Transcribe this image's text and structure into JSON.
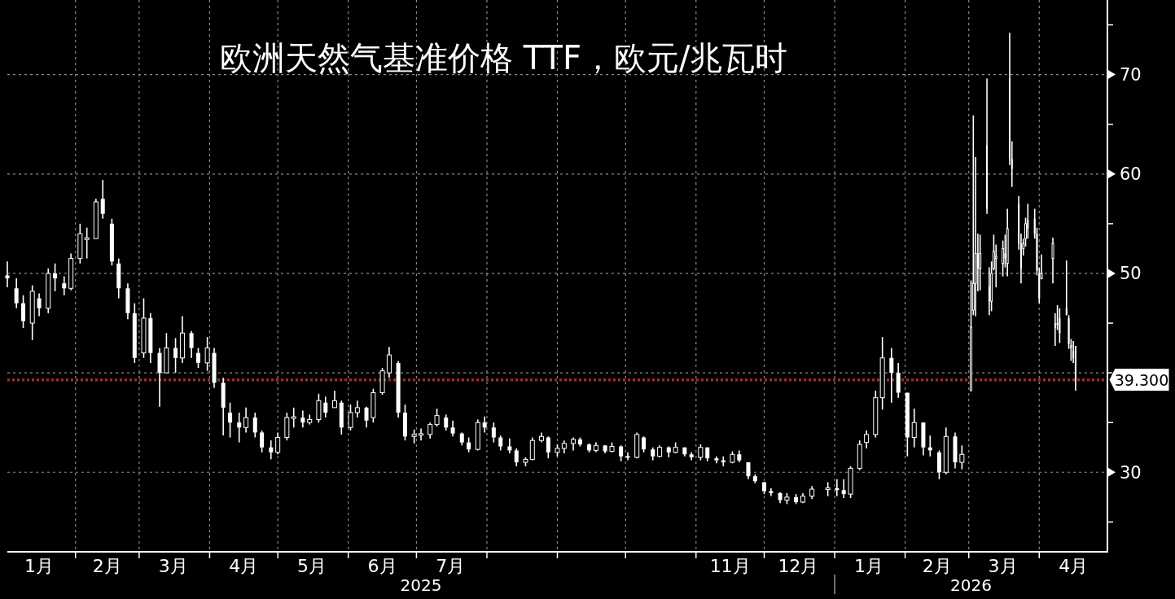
{
  "chart_data": {
    "type": "candlestick",
    "title": "欧洲天然气基准价格 TTF，欧元/兆瓦时",
    "color": "#ffffff",
    "x": [
      "2025-01-02",
      "2025-01-06",
      "2025-01-09",
      "2025-01-13",
      "2025-01-16",
      "2025-01-20",
      "2025-01-23",
      "2025-01-27",
      "2025-01-30",
      "2025-02-03",
      "2025-02-06",
      "2025-02-10",
      "2025-02-13",
      "2025-02-17",
      "2025-02-20",
      "2025-02-24",
      "2025-02-27",
      "2025-03-03",
      "2025-03-06",
      "2025-03-10",
      "2025-03-13",
      "2025-03-17",
      "2025-03-20",
      "2025-03-24",
      "2025-03-27",
      "2025-03-31",
      "2025-04-03",
      "2025-04-07",
      "2025-04-10",
      "2025-04-14",
      "2025-04-17",
      "2025-04-21",
      "2025-04-24",
      "2025-04-28",
      "2025-05-01",
      "2025-05-05",
      "2025-05-08",
      "2025-05-12",
      "2025-05-15",
      "2025-05-19",
      "2025-05-22",
      "2025-05-26",
      "2025-05-29",
      "2025-06-02",
      "2025-06-05",
      "2025-06-09",
      "2025-06-12",
      "2025-06-16",
      "2025-06-19",
      "2025-06-23",
      "2025-06-26",
      "2025-06-30",
      "2025-07-03",
      "2025-07-07",
      "2025-07-10",
      "2025-07-14",
      "2025-07-17",
      "2025-07-21",
      "2025-07-24",
      "2025-07-28",
      "2025-07-31",
      "2025-08-04",
      "2025-08-07",
      "2025-08-11",
      "2025-08-14",
      "2025-08-18",
      "2025-08-21",
      "2025-08-25",
      "2025-08-28",
      "2025-09-01",
      "2025-09-04",
      "2025-09-08",
      "2025-09-11",
      "2025-09-15",
      "2025-09-18",
      "2025-09-22",
      "2025-09-25",
      "2025-09-29",
      "2025-10-02",
      "2025-10-06",
      "2025-10-09",
      "2025-10-13",
      "2025-10-16",
      "2025-10-20",
      "2025-10-23",
      "2025-10-27",
      "2025-10-30",
      "2025-11-03",
      "2025-11-06",
      "2025-11-10",
      "2025-11-13",
      "2025-11-17",
      "2025-11-20",
      "2025-11-24",
      "2025-11-27",
      "2025-12-01",
      "2025-12-04",
      "2025-12-08",
      "2025-12-11",
      "2025-12-15",
      "2025-12-18",
      "2025-12-22",
      "2025-12-29",
      "2026-01-02",
      "2026-01-05",
      "2026-01-08",
      "2026-01-12",
      "2026-01-15",
      "2026-01-19",
      "2026-01-22",
      "2026-01-26",
      "2026-01-29",
      "2026-02-02",
      "2026-02-05",
      "2026-02-09",
      "2026-02-12",
      "2026-02-16",
      "2026-02-19",
      "2026-02-23",
      "2026-02-26",
      "2026-03-02",
      "2026-03-03",
      "2026-03-04",
      "2026-03-05",
      "2026-03-06",
      "2026-03-09",
      "2026-03-10",
      "2026-03-11",
      "2026-03-12",
      "2026-03-13",
      "2026-03-16",
      "2026-03-17",
      "2026-03-18",
      "2026-03-19",
      "2026-03-20",
      "2026-03-23",
      "2026-03-24",
      "2026-03-25",
      "2026-03-26",
      "2026-03-27",
      "2026-03-30",
      "2026-03-31",
      "2026-04-01",
      "2026-04-02",
      "2026-04-07",
      "2026-04-08",
      "2026-04-09",
      "2026-04-10",
      "2026-04-13",
      "2026-04-14",
      "2026-04-15",
      "2026-04-16",
      "2026-04-17"
    ],
    "ohlc": [
      [
        49.8,
        51.2,
        48.6,
        49.5
      ],
      [
        48.5,
        49.5,
        46.5,
        47
      ],
      [
        47,
        47.8,
        44.5,
        45.2
      ],
      [
        45,
        48.8,
        43.3,
        48.2
      ],
      [
        47.5,
        48,
        45.7,
        46.5
      ],
      [
        46.5,
        50.5,
        46,
        50
      ],
      [
        50,
        51,
        48.2,
        49.5
      ],
      [
        49,
        49.7,
        47.8,
        48.5
      ],
      [
        48.5,
        52,
        48.3,
        51.5
      ],
      [
        51.5,
        55,
        51,
        54
      ],
      [
        53.5,
        54.6,
        51.5,
        53.5
      ],
      [
        53.5,
        57.5,
        53.5,
        57.2
      ],
      [
        57.5,
        59.4,
        55.5,
        56
      ],
      [
        55,
        55.5,
        50.8,
        51.2
      ],
      [
        51,
        51.5,
        47.5,
        48.5
      ],
      [
        48.5,
        49,
        45.4,
        46
      ],
      [
        46,
        47,
        41,
        41.5
      ],
      [
        42,
        47.5,
        41.5,
        45.5
      ],
      [
        45.5,
        46,
        41,
        42
      ],
      [
        42,
        42.5,
        36.6,
        40
      ],
      [
        40,
        44,
        40,
        42.5
      ],
      [
        42.5,
        43.5,
        40,
        41.5
      ],
      [
        41.5,
        45.7,
        41,
        44
      ],
      [
        44,
        44.2,
        41.5,
        42.5
      ],
      [
        42,
        42.5,
        40.5,
        41
      ],
      [
        41,
        43.6,
        40.2,
        42.5
      ],
      [
        42,
        42.5,
        38.5,
        39
      ],
      [
        39,
        39.5,
        33.7,
        36.5
      ],
      [
        36,
        37,
        33.5,
        35
      ],
      [
        35,
        36,
        33,
        34.5
      ],
      [
        34.5,
        36.5,
        34,
        35.5
      ],
      [
        35.5,
        36,
        33.5,
        34
      ],
      [
        34,
        34.2,
        32,
        32.5
      ],
      [
        32.5,
        33.2,
        31.3,
        32
      ],
      [
        32,
        34,
        31.8,
        33.5
      ],
      [
        33.5,
        36,
        33.2,
        35.5
      ],
      [
        35.5,
        36.5,
        34.5,
        35.5
      ],
      [
        35.5,
        36.2,
        34.5,
        35
      ],
      [
        35,
        35.8,
        34.8,
        35.3
      ],
      [
        35.3,
        37.9,
        35,
        37.2
      ],
      [
        37,
        37.6,
        35.5,
        36
      ],
      [
        36.5,
        38.2,
        36.5,
        37.2
      ],
      [
        37,
        37.2,
        33.8,
        34.5
      ],
      [
        34.5,
        36.8,
        34.2,
        36
      ],
      [
        36,
        37.2,
        35.5,
        36.5
      ],
      [
        36.5,
        36.6,
        34.5,
        35.2
      ],
      [
        35.5,
        38.4,
        35,
        38
      ],
      [
        38,
        40.5,
        37.8,
        40.2
      ],
      [
        40,
        42.6,
        39.5,
        41.8
      ],
      [
        41,
        41.2,
        35.5,
        36
      ],
      [
        36,
        36.8,
        33.2,
        33.6
      ],
      [
        33.6,
        34.3,
        32.9,
        33.8
      ],
      [
        33.8,
        34.4,
        33.2,
        33.8
      ],
      [
        33.8,
        35,
        33.4,
        34.8
      ],
      [
        34.8,
        36.4,
        34.6,
        35.7
      ],
      [
        35.5,
        35.8,
        34.2,
        34.5
      ],
      [
        34.5,
        35.2,
        33.6,
        33.9
      ],
      [
        33.9,
        34,
        32.7,
        33
      ],
      [
        33,
        33.5,
        32,
        32.3
      ],
      [
        32.3,
        35.3,
        32.2,
        35
      ],
      [
        35,
        35.6,
        34,
        34.5
      ],
      [
        34.5,
        35,
        33,
        33.5
      ],
      [
        33.5,
        33.7,
        32.2,
        32.6
      ],
      [
        32.6,
        33.4,
        31.9,
        32.2
      ],
      [
        32.2,
        32.4,
        30.6,
        31
      ],
      [
        31,
        31.5,
        30.6,
        31.3
      ],
      [
        31.3,
        33.5,
        31.2,
        33.2
      ],
      [
        33.2,
        34,
        33,
        33.6
      ],
      [
        33.5,
        33.6,
        31.4,
        32
      ],
      [
        32,
        32.8,
        31.6,
        32.4
      ],
      [
        32.4,
        33.2,
        31.9,
        32.9
      ],
      [
        32.9,
        33.5,
        32.2,
        33.3
      ],
      [
        33.3,
        33.5,
        32.6,
        32.8
      ],
      [
        32.8,
        32.9,
        32,
        32.2
      ],
      [
        32.2,
        33,
        32,
        32.7
      ],
      [
        32.7,
        32.7,
        31.9,
        32.1
      ],
      [
        32.1,
        33,
        32,
        32.6
      ],
      [
        32.6,
        32.7,
        31.1,
        31.6
      ],
      [
        31.6,
        32,
        31.2,
        31.5
      ],
      [
        31.5,
        34,
        31.4,
        33.8
      ],
      [
        33.5,
        33.6,
        32,
        32.3
      ],
      [
        32.3,
        32.5,
        31.2,
        31.6
      ],
      [
        31.6,
        32.7,
        31.5,
        32.5
      ],
      [
        32.5,
        32.6,
        31.5,
        32
      ],
      [
        32,
        33,
        31.9,
        32.5
      ],
      [
        32.5,
        32.5,
        31.6,
        31.8
      ],
      [
        31.8,
        32,
        31.2,
        31.5
      ],
      [
        31.5,
        32.8,
        31.2,
        32.5
      ],
      [
        32.5,
        32.5,
        31.1,
        31.4
      ],
      [
        31.4,
        31.6,
        30.9,
        31.2
      ],
      [
        31.2,
        31.6,
        30.6,
        31
      ],
      [
        31,
        32.1,
        30.9,
        31.8
      ],
      [
        31.8,
        32.2,
        31,
        31.2
      ],
      [
        31,
        31,
        29.3,
        29.6
      ],
      [
        29.6,
        29.8,
        28.9,
        29.1
      ],
      [
        29,
        29,
        27.8,
        28.1
      ],
      [
        28.1,
        28.4,
        27.6,
        27.9
      ],
      [
        27.9,
        28,
        26.9,
        27.2
      ],
      [
        27.2,
        27.9,
        26.8,
        27.5
      ],
      [
        27.5,
        27.8,
        26.8,
        27
      ],
      [
        27,
        27.9,
        26.9,
        27.6
      ],
      [
        27.6,
        28.6,
        27.3,
        28.3
      ],
      [
        28.3,
        29,
        27.6,
        28.4
      ],
      [
        28.4,
        29.3,
        27.6,
        28.2
      ],
      [
        28.2,
        29.3,
        27.4,
        27.8
      ],
      [
        27.8,
        30.6,
        27.4,
        30.4
      ],
      [
        30.4,
        33.2,
        30.2,
        32.8
      ],
      [
        33,
        34.2,
        32.4,
        33.8
      ],
      [
        33.8,
        38.2,
        33.5,
        37.5
      ],
      [
        37.5,
        43.6,
        36.3,
        41.5
      ],
      [
        41.5,
        42.5,
        37,
        40
      ],
      [
        40,
        41,
        37.5,
        38
      ],
      [
        38,
        38,
        31.6,
        33.5
      ],
      [
        33.5,
        36.4,
        32.5,
        35
      ],
      [
        35,
        35,
        31.7,
        32.5
      ],
      [
        32.5,
        33.7,
        31.6,
        32.2
      ],
      [
        32,
        32.2,
        29.3,
        30
      ],
      [
        30,
        34.5,
        29.8,
        33.6
      ],
      [
        33.6,
        34,
        30.4,
        31
      ],
      [
        31,
        32.7,
        30.3,
        31.8
      ],
      [
        38.2,
        49.3,
        38.2,
        44.6
      ],
      [
        46.3,
        65.9,
        45.8,
        49
      ],
      [
        49,
        61.7,
        45.7,
        52
      ],
      [
        52,
        54,
        48.2,
        50.5
      ],
      [
        50.5,
        53.9,
        48.3,
        52
      ],
      [
        62.9,
        69.6,
        56,
        56.5
      ],
      [
        48.7,
        50.6,
        45.8,
        47.2
      ],
      [
        47.2,
        51.2,
        46.2,
        50
      ],
      [
        50.5,
        53.9,
        50.3,
        52.2
      ],
      [
        51.5,
        52.9,
        48.6,
        51.7
      ],
      [
        51,
        53.3,
        49.7,
        52.5
      ],
      [
        52,
        53.9,
        50.6,
        51.5
      ],
      [
        51,
        56.5,
        49.7,
        54.5
      ],
      [
        69.6,
        74.2,
        60.9,
        61.5
      ],
      [
        61.5,
        63.3,
        58.7,
        60.5
      ],
      [
        57,
        57.8,
        52.4,
        53
      ],
      [
        53,
        54,
        49,
        50.5
      ],
      [
        52.5,
        53.5,
        51.8,
        53
      ],
      [
        53.5,
        55.6,
        52.7,
        55
      ],
      [
        55.4,
        57,
        53.5,
        54.5
      ],
      [
        55.5,
        56.5,
        53.5,
        54
      ],
      [
        54,
        54.6,
        49.8,
        50.3
      ],
      [
        50,
        50.6,
        47,
        47.5
      ],
      [
        49.5,
        51.9,
        49.4,
        50
      ],
      [
        51.5,
        53.6,
        49,
        53
      ],
      [
        45,
        46,
        42.7,
        44.5
      ],
      [
        45,
        46.8,
        44.3,
        44.8
      ],
      [
        45.5,
        46.5,
        43,
        44
      ],
      [
        46.5,
        51.3,
        45.8,
        45.8
      ],
      [
        45.5,
        45.8,
        42.4,
        42.9
      ],
      [
        42.8,
        43.4,
        41.2,
        42.5
      ],
      [
        42.2,
        43.2,
        41,
        41.5
      ],
      [
        42.7,
        42.7,
        38.2,
        39.3
      ]
    ],
    "xlim": [
      "2025-01-02",
      "2026-05-01"
    ],
    "xticks": [
      {
        "value": "2025-01-16",
        "label": "1月"
      },
      {
        "value": "2025-02-01",
        "label": null
      },
      {
        "value": "2025-02-15",
        "label": "2月"
      },
      {
        "value": "2025-03-01",
        "label": null
      },
      {
        "value": "2025-03-16",
        "label": "3月"
      },
      {
        "value": "2025-04-01",
        "label": null
      },
      {
        "value": "2025-04-16",
        "label": "4月"
      },
      {
        "value": "2025-05-01",
        "label": null
      },
      {
        "value": "2025-05-16",
        "label": "5月"
      },
      {
        "value": "2025-06-01",
        "label": null
      },
      {
        "value": "2025-06-16",
        "label": "6月"
      },
      {
        "value": "2025-07-01",
        "label": null
      },
      {
        "value": "2025-07-16",
        "label": "7月"
      },
      {
        "value": "2025-08-01",
        "label": null
      },
      {
        "value": "2025-09-01",
        "label": null
      },
      {
        "value": "2025-10-01",
        "label": null
      },
      {
        "value": "2025-11-01",
        "label": null
      },
      {
        "value": "2025-11-16",
        "label": "11月"
      },
      {
        "value": "2025-12-01",
        "label": null
      },
      {
        "value": "2025-12-16",
        "label": "12月"
      },
      {
        "value": "2026-01-01",
        "label": null
      },
      {
        "value": "2026-01-16",
        "label": "1月"
      },
      {
        "value": "2026-02-01",
        "label": null
      },
      {
        "value": "2026-02-15",
        "label": "2月"
      },
      {
        "value": "2026-03-01",
        "label": null
      },
      {
        "value": "2026-03-16",
        "label": "3月"
      },
      {
        "value": "2026-04-01",
        "label": null
      },
      {
        "value": "2026-04-16",
        "label": "4月"
      }
    ],
    "ylim": [
      22,
      77.5
    ],
    "yticks": [
      30,
      {
        "value": 40,
        "label": null
      },
      50,
      60,
      70
    ],
    "grid": true,
    "ref_lines": [
      {
        "axis": "y",
        "value": 39.3,
        "label": "39.300",
        "color": "#9b2d2d",
        "line_style": "dotted"
      }
    ],
    "annotations": [
      "2025",
      "2026"
    ]
  }
}
